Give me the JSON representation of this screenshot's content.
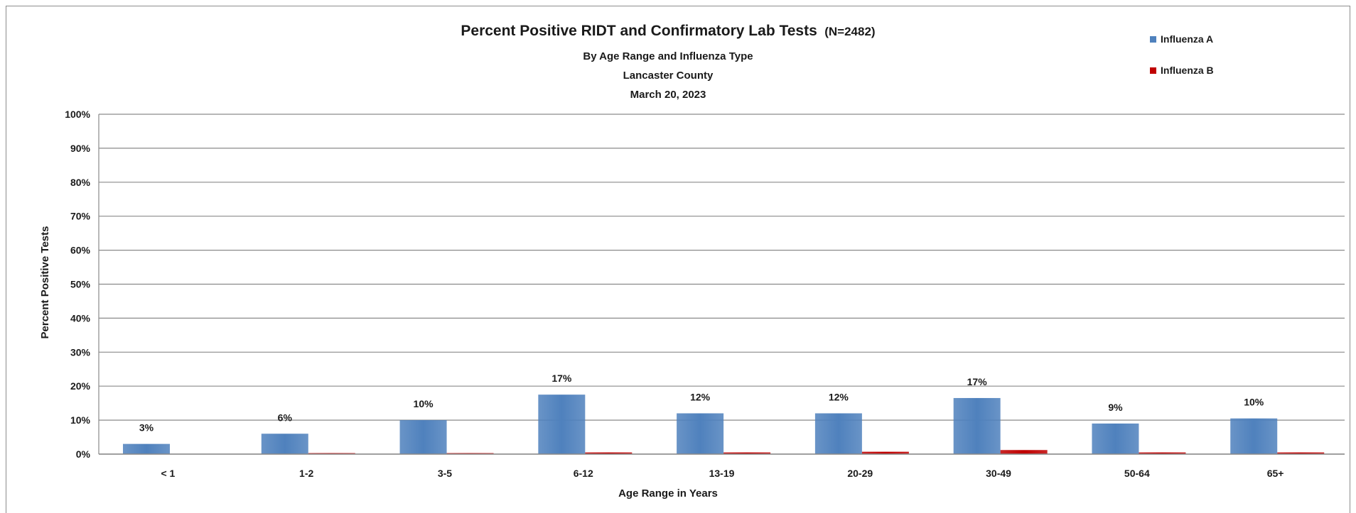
{
  "chart_data": {
    "type": "bar",
    "title": "Percent Positive RIDT and Confirmatory Lab Tests",
    "title_suffix": "(N=2482)",
    "subtitles": [
      "By Age Range and Influenza Type",
      "Lancaster County",
      "March 20, 2023"
    ],
    "xlabel": "Age Range in Years",
    "ylabel": "Percent Positive Tests",
    "ylim": [
      0,
      100
    ],
    "yticks": [
      "0%",
      "10%",
      "20%",
      "30%",
      "40%",
      "50%",
      "60%",
      "70%",
      "80%",
      "90%",
      "100%"
    ],
    "grid": true,
    "legend_position": "top-right",
    "categories": [
      "< 1",
      "1-2",
      "3-5",
      "6-12",
      "13-19",
      "20-29",
      "30-49",
      "50-64",
      "65+"
    ],
    "series": [
      {
        "name": "Influenza A",
        "color": "#4f81bd",
        "values": [
          3,
          6,
          10,
          17.5,
          12,
          12,
          16.5,
          9,
          10.5
        ],
        "labels": [
          "3%",
          "6%",
          "10%",
          "17%",
          "12%",
          "12%",
          "17%",
          "9%",
          "10%"
        ]
      },
      {
        "name": "Influenza B",
        "color": "#c00000",
        "values": [
          0,
          0.3,
          0.3,
          0.5,
          0.5,
          0.7,
          1.2,
          0.5,
          0.5
        ],
        "labels": []
      }
    ]
  }
}
